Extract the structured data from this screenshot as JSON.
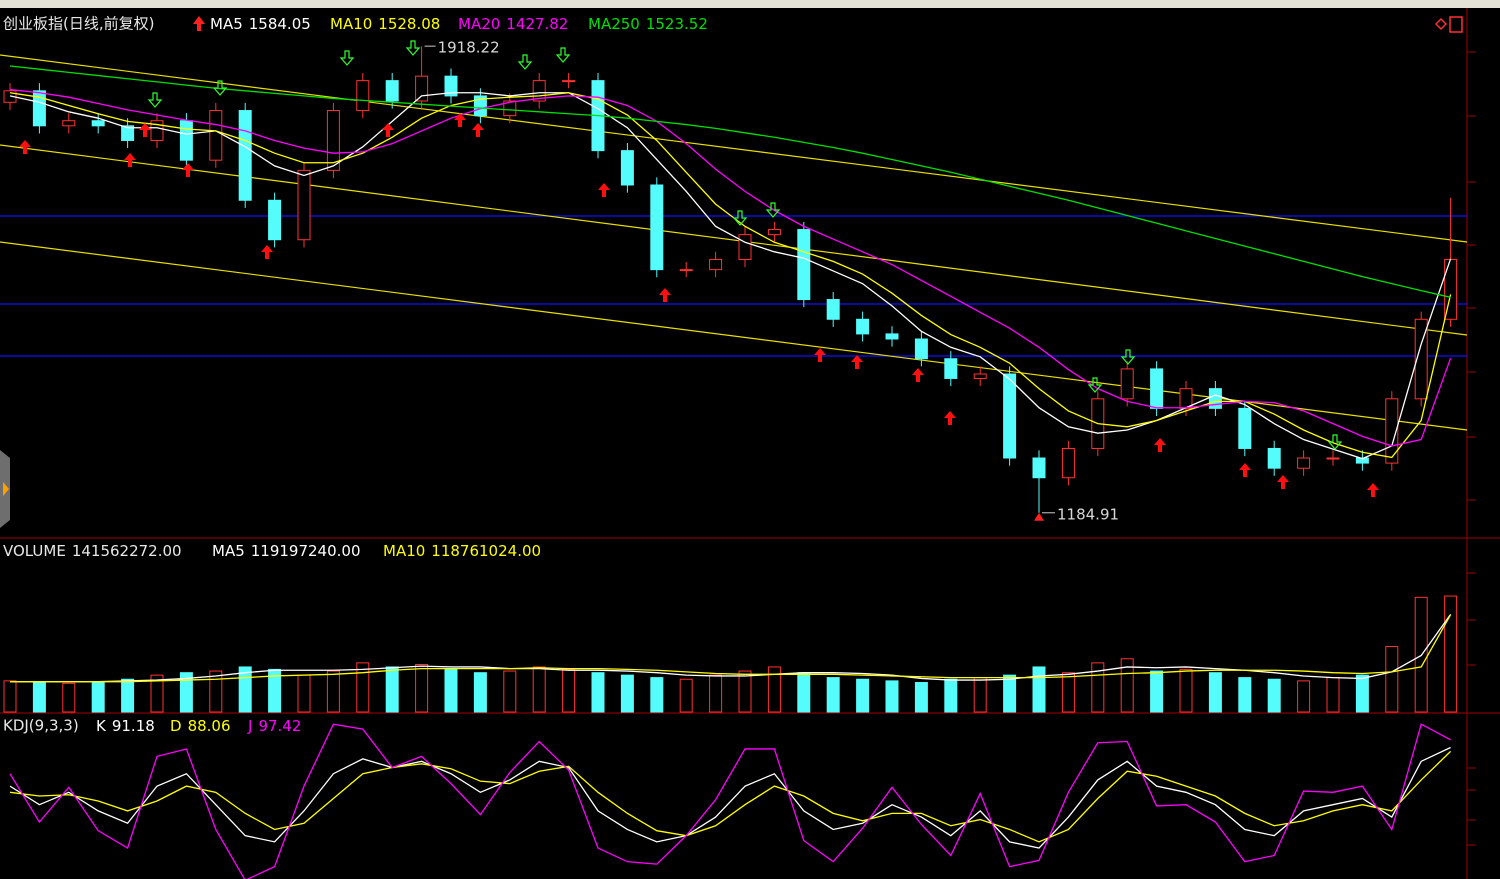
{
  "chart_data": [
    {
      "type": "candlestick",
      "title": "创业板指(日线,前复权)",
      "open": [
        1830,
        1848,
        1793,
        1801,
        1793,
        1770,
        1801,
        1739,
        1817,
        1676,
        1614,
        1723,
        1817,
        1864,
        1832,
        1871,
        1840,
        1809,
        1832,
        1864,
        1864,
        1754,
        1700,
        1567,
        1567,
        1583,
        1622,
        1630,
        1520,
        1489,
        1466,
        1458,
        1427,
        1396,
        1403,
        1271,
        1240,
        1286,
        1364,
        1411,
        1349,
        1380,
        1349,
        1286,
        1255,
        1271,
        1271,
        1263,
        1364,
        1489
      ],
      "high": [
        1860,
        1860,
        1813,
        1813,
        1805,
        1813,
        1813,
        1829,
        1829,
        1688,
        1735,
        1829,
        1876,
        1876,
        1918.22,
        1883,
        1852,
        1844,
        1876,
        1876,
        1876,
        1766,
        1712,
        1579,
        1595,
        1634,
        1642,
        1642,
        1532,
        1501,
        1478,
        1470,
        1439,
        1415,
        1415,
        1283,
        1298,
        1376,
        1423,
        1423,
        1392,
        1392,
        1361,
        1298,
        1283,
        1283,
        1283,
        1376,
        1501,
        1680
      ],
      "low": [
        1818,
        1781,
        1781,
        1781,
        1758,
        1758,
        1727,
        1727,
        1664,
        1602,
        1602,
        1711,
        1805,
        1820,
        1820,
        1828,
        1797,
        1797,
        1820,
        1852,
        1742,
        1688,
        1555,
        1555,
        1555,
        1571,
        1610,
        1508,
        1477,
        1454,
        1446,
        1415,
        1384,
        1384,
        1259,
        1184.91,
        1228,
        1274,
        1352,
        1337,
        1337,
        1337,
        1274,
        1243,
        1243,
        1259,
        1251,
        1251,
        1352,
        1477
      ],
      "close": [
        1848,
        1793,
        1801,
        1793,
        1770,
        1801,
        1739,
        1817,
        1676,
        1614,
        1723,
        1817,
        1864,
        1832,
        1871,
        1840,
        1809,
        1832,
        1864,
        1864,
        1754,
        1700,
        1567,
        1567,
        1583,
        1622,
        1630,
        1520,
        1489,
        1466,
        1458,
        1427,
        1396,
        1403,
        1271,
        1240,
        1286,
        1364,
        1411,
        1349,
        1380,
        1349,
        1286,
        1255,
        1271,
        1271,
        1263,
        1364,
        1489,
        1583
      ],
      "up_color": "#ff3232",
      "down_color": "#54fcfc",
      "series": [
        {
          "name": "MA5",
          "color": "#ffffff",
          "values": [
            1840,
            1830,
            1815,
            1805,
            1790,
            1790,
            1780,
            1785,
            1760,
            1730,
            1715,
            1730,
            1760,
            1800,
            1840,
            1845,
            1845,
            1840,
            1845,
            1845,
            1820,
            1790,
            1740,
            1690,
            1635,
            1610,
            1595,
            1585,
            1565,
            1545,
            1510,
            1470,
            1445,
            1430,
            1395,
            1350,
            1320,
            1310,
            1315,
            1330,
            1350,
            1370,
            1355,
            1325,
            1300,
            1285,
            1270,
            1290,
            1450,
            1584.05
          ]
        },
        {
          "name": "MA10",
          "color": "#ffff00",
          "values": [
            1845,
            1838,
            1825,
            1812,
            1800,
            1795,
            1788,
            1785,
            1770,
            1750,
            1735,
            1735,
            1750,
            1775,
            1805,
            1825,
            1835,
            1838,
            1840,
            1845,
            1835,
            1810,
            1770,
            1720,
            1670,
            1635,
            1610,
            1595,
            1580,
            1560,
            1530,
            1495,
            1465,
            1445,
            1420,
            1380,
            1345,
            1325,
            1320,
            1330,
            1345,
            1360,
            1360,
            1340,
            1315,
            1295,
            1280,
            1272,
            1330,
            1528.08
          ]
        },
        {
          "name": "MA20",
          "color": "#ff00ff",
          "values": [
            1850,
            1845,
            1838,
            1828,
            1818,
            1810,
            1802,
            1795,
            1785,
            1770,
            1758,
            1750,
            1752,
            1765,
            1785,
            1805,
            1820,
            1830,
            1836,
            1840,
            1838,
            1825,
            1800,
            1765,
            1725,
            1690,
            1660,
            1635,
            1615,
            1595,
            1575,
            1550,
            1525,
            1500,
            1475,
            1445,
            1410,
            1380,
            1360,
            1350,
            1350,
            1355,
            1360,
            1358,
            1345,
            1325,
            1305,
            1290,
            1300,
            1427.82
          ]
        },
        {
          "name": "MA250",
          "color": "#00e000",
          "values": [
            1887,
            1882,
            1877,
            1872,
            1867,
            1862,
            1857,
            1852,
            1848,
            1844,
            1840,
            1836,
            1833,
            1830,
            1827,
            1824,
            1821,
            1818,
            1815,
            1812,
            1809,
            1805,
            1800,
            1795,
            1789,
            1782,
            1775,
            1767,
            1759,
            1750,
            1740,
            1730,
            1720,
            1709,
            1698,
            1687,
            1676,
            1664,
            1652,
            1640,
            1628,
            1616,
            1604,
            1592,
            1580,
            1568,
            1556,
            1545,
            1534,
            1523.52
          ]
        }
      ],
      "ylim": [
        1150,
        1975
      ]
    },
    {
      "type": "bar",
      "title": "VOLUME",
      "values": [
        38000000,
        36000000,
        35000000,
        37000000,
        40000000,
        45000000,
        48000000,
        50000000,
        55000000,
        52000000,
        45000000,
        50000000,
        60000000,
        55000000,
        58000000,
        52000000,
        48000000,
        50000000,
        55000000,
        52000000,
        48000000,
        45000000,
        42000000,
        40000000,
        45000000,
        50000000,
        55000000,
        48000000,
        42000000,
        40000000,
        38000000,
        36000000,
        40000000,
        42000000,
        45000000,
        55000000,
        48000000,
        60000000,
        65000000,
        50000000,
        52000000,
        48000000,
        42000000,
        40000000,
        38000000,
        42000000,
        45000000,
        80000000,
        140000000,
        141562272
      ],
      "value_labels": [
        null,
        null,
        null,
        null,
        null,
        null,
        null,
        null,
        null,
        null,
        null,
        null,
        null,
        null,
        null,
        null,
        null,
        null,
        null,
        null,
        null,
        null,
        null,
        null,
        null,
        null,
        null,
        null,
        null,
        null,
        null,
        null,
        null,
        null,
        null,
        null,
        null,
        null,
        null,
        null,
        null,
        null,
        null,
        null,
        null,
        null,
        null,
        null,
        null,
        "141562272.00"
      ],
      "series": [
        {
          "name": "MA5",
          "color": "#ffffff",
          "values": [
            37000000,
            37000000,
            37000000,
            37000000,
            38000000,
            39000000,
            41000000,
            44000000,
            48000000,
            51000000,
            51000000,
            51000000,
            52000000,
            54000000,
            56000000,
            55000000,
            55000000,
            53000000,
            53000000,
            51000000,
            51000000,
            50000000,
            48000000,
            45000000,
            44000000,
            44000000,
            46000000,
            48000000,
            48000000,
            47000000,
            45000000,
            41000000,
            39000000,
            39000000,
            40000000,
            44000000,
            46000000,
            50000000,
            55000000,
            54000000,
            55000000,
            53000000,
            51000000,
            48000000,
            44000000,
            42000000,
            41000000,
            49000000,
            69000000,
            119197240
          ],
          "value_labels": [
            null,
            null,
            null,
            null,
            null,
            null,
            null,
            null,
            null,
            null,
            null,
            null,
            null,
            null,
            null,
            null,
            null,
            null,
            null,
            null,
            null,
            null,
            null,
            null,
            null,
            null,
            null,
            null,
            null,
            null,
            null,
            null,
            null,
            null,
            null,
            null,
            null,
            null,
            null,
            null,
            null,
            null,
            null,
            null,
            null,
            null,
            null,
            null,
            null,
            "119197240.00"
          ]
        },
        {
          "name": "MA10",
          "color": "#ffff00",
          "values": [
            37000000,
            37000000,
            37000000,
            37000000,
            37000000,
            38000000,
            39000000,
            40000000,
            42000000,
            44000000,
            45000000,
            46000000,
            48000000,
            51000000,
            53000000,
            53000000,
            53000000,
            53000000,
            54000000,
            53000000,
            53000000,
            52000000,
            51000000,
            49000000,
            47000000,
            46000000,
            46000000,
            46000000,
            46000000,
            45000000,
            44000000,
            43000000,
            42000000,
            42000000,
            42000000,
            42000000,
            43000000,
            45000000,
            47000000,
            48000000,
            50000000,
            51000000,
            51000000,
            51000000,
            50000000,
            48000000,
            47000000,
            49000000,
            55000000,
            118761024
          ],
          "value_labels": [
            null,
            null,
            null,
            null,
            null,
            null,
            null,
            null,
            null,
            null,
            null,
            null,
            null,
            null,
            null,
            null,
            null,
            null,
            null,
            null,
            null,
            null,
            null,
            null,
            null,
            null,
            null,
            null,
            null,
            null,
            null,
            null,
            null,
            null,
            null,
            null,
            null,
            null,
            null,
            null,
            null,
            null,
            null,
            null,
            null,
            null,
            null,
            null,
            null,
            "118761024.00"
          ]
        }
      ],
      "ylim": [
        0,
        210000000
      ]
    },
    {
      "type": "line",
      "title": "KDJ(9,3,3)",
      "series": [
        {
          "name": "K",
          "color": "#ffffff",
          "values": [
            60,
            45,
            55,
            40,
            30,
            60,
            70,
            45,
            20,
            15,
            40,
            70,
            82,
            75,
            80,
            70,
            55,
            65,
            80,
            75,
            40,
            25,
            15,
            20,
            35,
            60,
            70,
            40,
            25,
            30,
            45,
            35,
            20,
            40,
            15,
            10,
            35,
            65,
            80,
            60,
            55,
            45,
            25,
            20,
            40,
            45,
            50,
            35,
            80,
            91.18
          ]
        },
        {
          "name": "D",
          "color": "#ffff00",
          "values": [
            55,
            52,
            53,
            48,
            40,
            48,
            60,
            55,
            38,
            25,
            30,
            50,
            70,
            75,
            78,
            74,
            64,
            62,
            72,
            76,
            55,
            38,
            24,
            20,
            28,
            45,
            60,
            52,
            38,
            32,
            38,
            38,
            28,
            33,
            25,
            15,
            25,
            50,
            72,
            68,
            60,
            52,
            38,
            28,
            32,
            40,
            45,
            40,
            65,
            88.06
          ]
        },
        {
          "name": "J",
          "color": "#ff00ff",
          "values": [
            70,
            31,
            59,
            24,
            10,
            84,
            90,
            25,
            -16,
            -5,
            60,
            110,
            106,
            75,
            84,
            62,
            37,
            71,
            96,
            73,
            10,
            -1,
            -3,
            20,
            49,
            90,
            90,
            16,
            -1,
            26,
            59,
            29,
            4,
            54,
            -5,
            0,
            55,
            95,
            96,
            44,
            45,
            31,
            -1,
            4,
            56,
            55,
            60,
            25,
            110,
            97.42
          ]
        }
      ],
      "ylim": [
        -15,
        115
      ]
    }
  ]
}
